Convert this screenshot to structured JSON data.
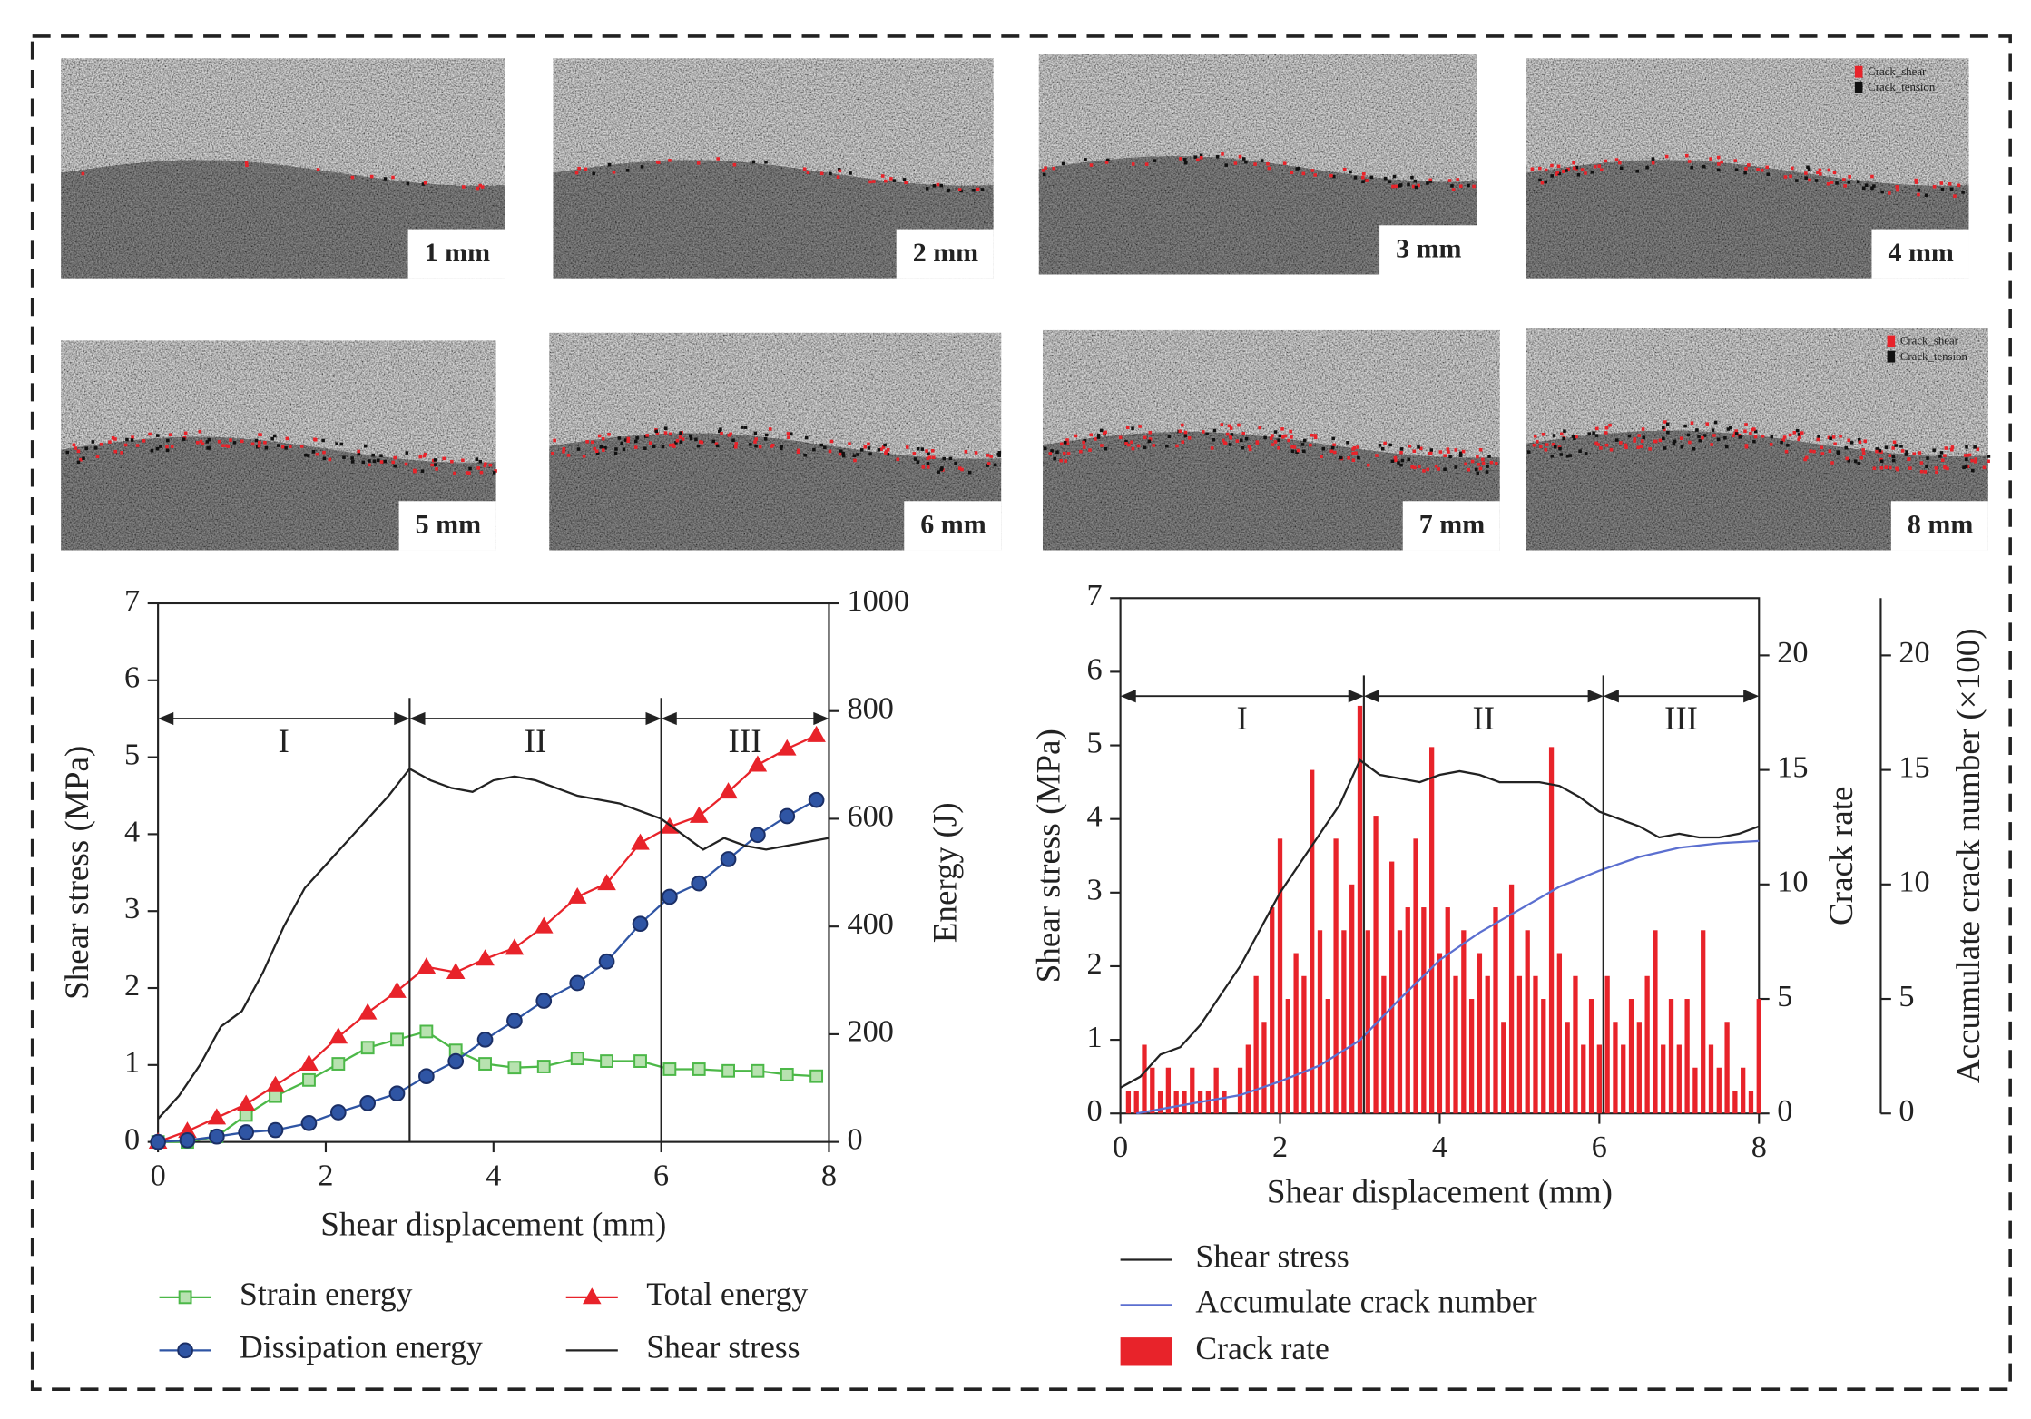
{
  "panels": [
    {
      "label": "1 mm"
    },
    {
      "label": "2 mm"
    },
    {
      "label": "3 mm"
    },
    {
      "label": "4 mm"
    },
    {
      "label": "5 mm"
    },
    {
      "label": "6 mm"
    },
    {
      "label": "7 mm"
    },
    {
      "label": "8 mm"
    }
  ],
  "panel_legend": [
    "Crack_shear",
    "Crack_tension"
  ],
  "chart_data": [
    {
      "type": "line",
      "xlabel": "Shear displacement (mm)",
      "ylabel": "Shear stress (MPa)",
      "y2label": "Energy (J)",
      "xlim": [
        0,
        8
      ],
      "xticks": [
        0,
        2,
        4,
        6,
        8
      ],
      "ylim": [
        0,
        7
      ],
      "yticks": [
        0,
        1,
        2,
        3,
        4,
        5,
        6,
        7
      ],
      "y2lim": [
        0,
        1000
      ],
      "y2ticks": [
        0,
        200,
        400,
        600,
        800,
        1000
      ],
      "regions": [
        {
          "label": "I",
          "from": 0,
          "to": 3
        },
        {
          "label": "II",
          "from": 3,
          "to": 6
        },
        {
          "label": "III",
          "from": 6,
          "to": 8
        }
      ],
      "series": [
        {
          "name": "Strain energy",
          "color": "#4cb848",
          "marker": "square",
          "axis": "y2",
          "x": [
            0,
            0.35,
            0.7,
            1.05,
            1.4,
            1.8,
            2.15,
            2.5,
            2.85,
            3.2,
            3.55,
            3.9,
            4.25,
            4.6,
            5,
            5.35,
            5.75,
            6.1,
            6.45,
            6.8,
            7.15,
            7.5,
            7.85
          ],
          "values": [
            0,
            0,
            10,
            50,
            85,
            115,
            145,
            175,
            190,
            205,
            170,
            145,
            138,
            140,
            155,
            150,
            150,
            135,
            135,
            132,
            132,
            125,
            122
          ]
        },
        {
          "name": "Total energy",
          "color": "#e8232a",
          "marker": "triangle",
          "axis": "y2",
          "x": [
            0,
            0.35,
            0.7,
            1.05,
            1.4,
            1.8,
            2.15,
            2.5,
            2.85,
            3.2,
            3.55,
            3.9,
            4.25,
            4.6,
            5,
            5.35,
            5.75,
            6.1,
            6.45,
            6.8,
            7.15,
            7.5,
            7.85
          ],
          "values": [
            0,
            20,
            45,
            70,
            105,
            145,
            195,
            240,
            280,
            325,
            315,
            340,
            360,
            400,
            455,
            480,
            555,
            585,
            605,
            650,
            700,
            730,
            755
          ]
        },
        {
          "name": "Dissipation energy",
          "color": "#2f55a4",
          "marker": "circle",
          "axis": "y2",
          "x": [
            0,
            0.35,
            0.7,
            1.05,
            1.4,
            1.8,
            2.15,
            2.5,
            2.85,
            3.2,
            3.55,
            3.9,
            4.25,
            4.6,
            5,
            5.35,
            5.75,
            6.1,
            6.45,
            6.8,
            7.15,
            7.5,
            7.85
          ],
          "values": [
            0,
            3,
            10,
            18,
            22,
            35,
            55,
            72,
            90,
            122,
            150,
            190,
            225,
            262,
            295,
            335,
            405,
            455,
            480,
            525,
            570,
            605,
            635
          ]
        },
        {
          "name": "Shear stress",
          "color": "#222222",
          "axis": "y",
          "x": [
            0,
            0.25,
            0.5,
            0.75,
            1,
            1.25,
            1.5,
            1.75,
            2,
            2.25,
            2.5,
            2.75,
            3,
            3.25,
            3.5,
            3.75,
            4,
            4.25,
            4.5,
            4.75,
            5,
            5.25,
            5.5,
            5.75,
            6,
            6.25,
            6.5,
            6.75,
            7,
            7.25,
            7.5,
            7.75,
            8
          ],
          "values": [
            0.3,
            0.6,
            1.0,
            1.5,
            1.7,
            2.2,
            2.8,
            3.3,
            3.6,
            3.9,
            4.2,
            4.5,
            4.85,
            4.7,
            4.6,
            4.55,
            4.7,
            4.75,
            4.7,
            4.6,
            4.5,
            4.45,
            4.4,
            4.3,
            4.2,
            4.0,
            3.8,
            3.95,
            3.85,
            3.8,
            3.85,
            3.9,
            3.95
          ]
        }
      ]
    },
    {
      "type": "line",
      "xlabel": "Shear displacement (mm)",
      "ylabel": "Shear stress (MPa)",
      "y2label": "Crack rate",
      "y3label": "Accumulate crack number (×100)",
      "xlim": [
        0,
        8
      ],
      "xticks": [
        0,
        2,
        4,
        6,
        8
      ],
      "ylim": [
        0,
        7
      ],
      "yticks": [
        0,
        1,
        2,
        3,
        4,
        5,
        6,
        7
      ],
      "y2lim": [
        0,
        22.5
      ],
      "y2ticks": [
        0,
        5,
        10,
        15,
        20
      ],
      "y3lim": [
        0,
        22.5
      ],
      "y3ticks": [
        0,
        5,
        10,
        15,
        20
      ],
      "regions": [
        {
          "label": "I",
          "from": 0,
          "to": 3.05
        },
        {
          "label": "II",
          "from": 3.05,
          "to": 6.05
        },
        {
          "label": "III",
          "from": 6.05,
          "to": 8
        }
      ],
      "series": [
        {
          "name": "Shear stress",
          "color": "#222222",
          "axis": "y",
          "type": "line",
          "x": [
            0,
            0.25,
            0.5,
            0.75,
            1,
            1.25,
            1.5,
            1.75,
            2,
            2.25,
            2.5,
            2.75,
            3,
            3.25,
            3.5,
            3.75,
            4,
            4.25,
            4.5,
            4.75,
            5,
            5.25,
            5.5,
            5.75,
            6,
            6.25,
            6.5,
            6.75,
            7,
            7.25,
            7.5,
            7.75,
            8
          ],
          "values": [
            0.35,
            0.5,
            0.8,
            0.9,
            1.2,
            1.6,
            2.0,
            2.5,
            3.0,
            3.4,
            3.8,
            4.2,
            4.8,
            4.6,
            4.55,
            4.5,
            4.6,
            4.65,
            4.6,
            4.5,
            4.5,
            4.5,
            4.45,
            4.3,
            4.1,
            4.0,
            3.9,
            3.75,
            3.8,
            3.75,
            3.75,
            3.8,
            3.9
          ]
        },
        {
          "name": "Accumulate crack number",
          "color": "#5b6fd0",
          "axis": "y3",
          "type": "line",
          "x": [
            0.2,
            1,
            1.5,
            2,
            2.5,
            3,
            3.5,
            4,
            4.5,
            5,
            5.5,
            6,
            6.5,
            7,
            7.5,
            8
          ],
          "values": [
            0,
            0.5,
            0.8,
            1.4,
            2.1,
            3.2,
            5.0,
            6.7,
            7.9,
            8.9,
            9.9,
            10.6,
            11.2,
            11.6,
            11.8,
            11.9
          ]
        },
        {
          "name": "Crack rate",
          "color": "#e8232a",
          "axis": "y2",
          "type": "bar",
          "x": [
            0.1,
            0.2,
            0.3,
            0.4,
            0.5,
            0.6,
            0.7,
            0.8,
            0.9,
            1.0,
            1.1,
            1.2,
            1.3,
            1.4,
            1.5,
            1.6,
            1.7,
            1.8,
            1.9,
            2.0,
            2.1,
            2.2,
            2.3,
            2.4,
            2.5,
            2.6,
            2.7,
            2.8,
            2.9,
            3.0,
            3.1,
            3.2,
            3.3,
            3.4,
            3.5,
            3.6,
            3.7,
            3.8,
            3.9,
            4.0,
            4.1,
            4.2,
            4.3,
            4.4,
            4.5,
            4.6,
            4.7,
            4.8,
            4.9,
            5.0,
            5.1,
            5.2,
            5.3,
            5.4,
            5.5,
            5.6,
            5.7,
            5.8,
            5.9,
            6.0,
            6.1,
            6.2,
            6.3,
            6.4,
            6.5,
            6.6,
            6.7,
            6.8,
            6.9,
            7.0,
            7.1,
            7.2,
            7.3,
            7.4,
            7.5,
            7.6,
            7.7,
            7.8,
            7.9,
            8.0
          ],
          "values": [
            1,
            1,
            3,
            2,
            1,
            2,
            1,
            1,
            2,
            1,
            1,
            2,
            1,
            0,
            2,
            3,
            6,
            4,
            9,
            12,
            5,
            7,
            6,
            15,
            8,
            5,
            12,
            8,
            10,
            17.8,
            8,
            13,
            6,
            11,
            8,
            9,
            12,
            9,
            16,
            7,
            9,
            6,
            8,
            5,
            7,
            6,
            9,
            4,
            10,
            6,
            8,
            6,
            5,
            16,
            7,
            4,
            6,
            3,
            5,
            3,
            6,
            4,
            3,
            5,
            4,
            6,
            8,
            3,
            5,
            3,
            5,
            2,
            8,
            3,
            2,
            4,
            1,
            2,
            1,
            5
          ]
        }
      ]
    }
  ]
}
